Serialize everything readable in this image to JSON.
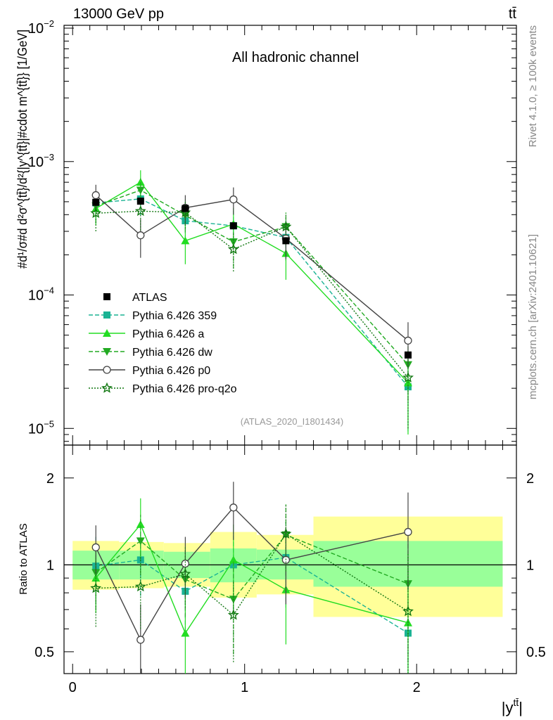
{
  "header": {
    "left": "13000 GeV pp",
    "right": "tt̄"
  },
  "side_labels": {
    "top": "Rivet 4.1.0, ≥ 100k events",
    "bottom": "mcplots.cern.ch [arXiv:2401.10621]"
  },
  "chart_data": [
    {
      "type": "line",
      "panel": "main",
      "title": "All hadronic channel",
      "analysis_label": "(ATLAS_2020_I1801434)",
      "ylabel": "#d¹/σ#d d²σ^{tt̄}/d²{|y^{tt̄}|#cdot m^{tt̄}} [1/GeV]",
      "yscale": "log",
      "ylim": [
        7.5e-06,
        0.0105
      ],
      "xlim": [
        -0.05,
        2.58
      ],
      "ytick_labels": [
        {
          "value": 1e-05,
          "mant": "10",
          "exp": "−5"
        },
        {
          "value": 0.0001,
          "mant": "10",
          "exp": "−4"
        },
        {
          "value": 0.001,
          "mant": "10",
          "exp": "−3"
        },
        {
          "value": 0.01,
          "mant": "10",
          "exp": "−2"
        }
      ],
      "bins": [
        0,
        0.27,
        0.53,
        0.8,
        1.07,
        1.4,
        2.5
      ],
      "x": [
        0.135,
        0.395,
        0.655,
        0.935,
        1.24,
        1.95
      ],
      "series": [
        {
          "name": "ATLAS",
          "values": [
            0.000495,
            0.000505,
            0.000445,
            0.00033,
            0.000255,
            3.55e-05
          ]
        },
        {
          "name": "Pythia 6.426 359",
          "values": [
            0.00049,
            0.000525,
            0.00036,
            0.00033,
            0.00027,
            2.05e-05
          ],
          "err": [
            0.00013,
            0.00013,
            0.0001,
            0.0001,
            9e-05,
            1.1e-05
          ]
        },
        {
          "name": "Pythia 6.426 a",
          "values": [
            0.000445,
            0.0007,
            0.000255,
            0.00034,
            0.000205,
            2.2e-05
          ],
          "err": [
            0.00011,
            0.00016,
            8.5e-05,
            0.00011,
            7.5e-05,
            1.3e-05
          ]
        },
        {
          "name": "Pythia 6.426 dw",
          "values": [
            0.000465,
            0.00061,
            0.000395,
            0.00025,
            0.000325,
            3e-05
          ],
          "err": [
            0.00012,
            0.00014,
            0.0001,
            9e-05,
            9e-05,
            1.4e-05
          ]
        },
        {
          "name": "Pythia 6.426 p0",
          "values": [
            0.00056,
            0.00028,
            0.00045,
            0.00052,
            0.000265,
            4.55e-05
          ],
          "err": [
            0.00011,
            9e-05,
            0.00011,
            0.00012,
            8e-05,
            1.7e-05
          ]
        },
        {
          "name": "Pythia 6.426 pro-q2o",
          "values": [
            0.00041,
            0.000425,
            0.000415,
            0.00022,
            0.000325,
            2.4e-05
          ],
          "err": [
            0.00011,
            0.00012,
            0.0001,
            7e-05,
            8.5e-05,
            1.4e-05
          ]
        }
      ]
    },
    {
      "type": "line",
      "panel": "ratio",
      "ylabel": "Ratio to ATLAS",
      "yscale": "log",
      "ylim": [
        0.42,
        2.6
      ],
      "xlim": [
        -0.05,
        2.58
      ],
      "xlabel": "|y^{tt̄}|",
      "xtick_labels": [
        {
          "value": 0,
          "label": "0"
        },
        {
          "value": 1,
          "label": "1"
        },
        {
          "value": 2,
          "label": "2"
        }
      ],
      "ytick_labels": [
        {
          "value": 0.5,
          "label": "0.5"
        },
        {
          "value": 1,
          "label": "1"
        },
        {
          "value": 2,
          "label": "2"
        }
      ],
      "bins": [
        0,
        0.27,
        0.53,
        0.8,
        1.07,
        1.4,
        2.5
      ],
      "band_inner": [
        [
          0.89,
          1.12
        ],
        [
          0.89,
          1.12
        ],
        [
          0.9,
          1.11
        ],
        [
          0.87,
          1.14
        ],
        [
          0.89,
          1.13
        ],
        [
          0.84,
          1.21
        ]
      ],
      "band_outer": [
        [
          0.82,
          1.21
        ],
        [
          0.83,
          1.2
        ],
        [
          0.84,
          1.19
        ],
        [
          0.77,
          1.3
        ],
        [
          0.79,
          1.27
        ],
        [
          0.66,
          1.47
        ]
      ],
      "x": [
        0.135,
        0.395,
        0.655,
        0.935,
        1.24,
        1.95
      ],
      "series": [
        {
          "name": "Pythia 6.426 359",
          "values": [
            0.99,
            1.04,
            0.81,
            1.0,
            1.06,
            0.58
          ],
          "err": [
            0.26,
            0.26,
            0.22,
            0.3,
            0.35,
            0.3
          ]
        },
        {
          "name": "Pythia 6.426 a",
          "values": [
            0.9,
            1.38,
            0.58,
            1.04,
            0.82,
            0.63
          ],
          "err": [
            0.22,
            0.32,
            0.2,
            0.34,
            0.29,
            0.37
          ]
        },
        {
          "name": "Pythia 6.426 dw",
          "values": [
            0.94,
            1.21,
            0.89,
            0.76,
            1.27,
            0.86
          ],
          "err": [
            0.24,
            0.28,
            0.23,
            0.27,
            0.35,
            0.4
          ]
        },
        {
          "name": "Pythia 6.426 p0",
          "values": [
            1.15,
            0.55,
            1.01,
            1.58,
            1.04,
            1.3
          ],
          "err": [
            0.22,
            0.18,
            0.24,
            0.36,
            0.31,
            0.48
          ]
        },
        {
          "name": "Pythia 6.426 pro-q2o",
          "values": [
            0.83,
            0.84,
            0.93,
            0.67,
            1.28,
            0.69
          ],
          "err": [
            0.22,
            0.24,
            0.22,
            0.21,
            0.33,
            0.4
          ]
        }
      ]
    }
  ],
  "styles": {
    "Pythia 6.426 359": {
      "color": "#1ab394",
      "dash": "6,3",
      "marker": "square"
    },
    "Pythia 6.426 a": {
      "color": "#22dd22",
      "dash": "",
      "marker": "triangle-up"
    },
    "Pythia 6.426 dw": {
      "color": "#22aa22",
      "dash": "6,3",
      "marker": "triangle-down"
    },
    "Pythia 6.426 p0": {
      "color": "#444444",
      "dash": "",
      "marker": "circle-open"
    },
    "Pythia 6.426 pro-q2o": {
      "color": "#117711",
      "dash": "2,2",
      "marker": "star-open"
    },
    "ATLAS": {
      "color": "#000000",
      "dash": "",
      "marker": "square"
    },
    "band_inner_color": "#99ff99",
    "band_outer_color": "#ffff99"
  }
}
